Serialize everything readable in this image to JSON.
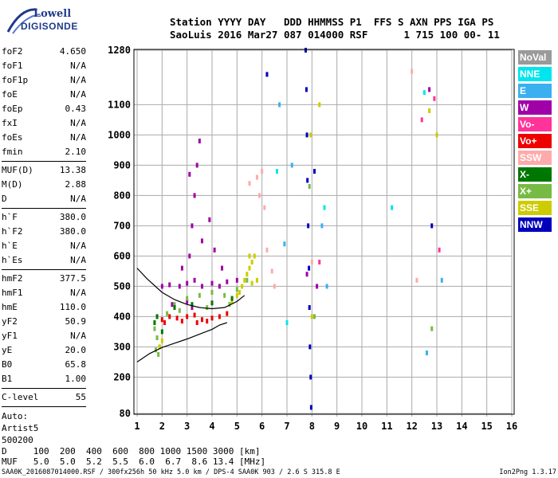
{
  "logo": {
    "line1": "Lowell",
    "line2": "DIGISONDE"
  },
  "header": {
    "line1": "Station YYYY DAY   DDD HHMMSS P1  FFS S AXN PPS IGA PS",
    "line2": "SaoLuis 2016 Mar27 087 014000 RSF      1 715 100 00- 11"
  },
  "params": [
    {
      "name": "foF2",
      "value": "4.650"
    },
    {
      "name": "foF1",
      "value": "N/A"
    },
    {
      "name": "foF1p",
      "value": "N/A"
    },
    {
      "name": "foE",
      "value": "N/A"
    },
    {
      "name": "foEp",
      "value": "0.43"
    },
    {
      "name": "fxI",
      "value": "N/A"
    },
    {
      "name": "foEs",
      "value": "N/A"
    },
    {
      "name": "fmin",
      "value": "2.10"
    },
    {
      "name": "MUF(D)",
      "value": "13.38"
    },
    {
      "name": "M(D)",
      "value": "2.88"
    },
    {
      "name": "D",
      "value": "N/A"
    },
    {
      "name": "h`F",
      "value": "380.0"
    },
    {
      "name": "h`F2",
      "value": "380.0"
    },
    {
      "name": "h`E",
      "value": "N/A"
    },
    {
      "name": "h`Es",
      "value": "N/A"
    },
    {
      "name": "hmF2",
      "value": "377.5"
    },
    {
      "name": "hmF1",
      "value": "N/A"
    },
    {
      "name": "hmE",
      "value": "110.0"
    },
    {
      "name": "yF2",
      "value": "50.9"
    },
    {
      "name": "yF1",
      "value": "N/A"
    },
    {
      "name": "yE",
      "value": "20.0"
    },
    {
      "name": "B0",
      "value": "65.8"
    },
    {
      "name": "B1",
      "value": "1.00"
    },
    {
      "name": "C-level",
      "value": "55"
    }
  ],
  "auto": {
    "line1": "Auto:",
    "line2": "Artist5",
    "line3": "500200"
  },
  "legend": [
    {
      "label": "NoVal",
      "color": "#9a9a9a"
    },
    {
      "label": "NNE",
      "color": "#00e5ee"
    },
    {
      "label": "E",
      "color": "#3ab0f0"
    },
    {
      "label": "W",
      "color": "#a000a8"
    },
    {
      "label": "Vo-",
      "color": "#ff3399"
    },
    {
      "label": "Vo+",
      "color": "#ee0000"
    },
    {
      "label": "SSW",
      "color": "#ffaaaa"
    },
    {
      "label": "X-",
      "color": "#007700"
    },
    {
      "label": "X+",
      "color": "#77bb44"
    },
    {
      "label": "SSE",
      "color": "#cccc00"
    },
    {
      "label": "NNW",
      "color": "#0000bb"
    }
  ],
  "dmuf": {
    "d_line": "D     100  200  400  600  800 1000 1500 3000 [km]",
    "muf_line": "MUF   5.0  5.0  5.2  5.5  6.0  6.7  8.6 13.4 [MHz]"
  },
  "footer": {
    "left": "SAA0K_2016087014000.RSF / 300fx256h 50 kHz 5.0 km / DPS-4 SAA0K 903 / 2.6 S 315.8 E",
    "right": "Ion2Png 1.3.17"
  },
  "chart_data": {
    "type": "scatter",
    "xlim": [
      1,
      16
    ],
    "ylim": [
      80,
      1280
    ],
    "x_ticks": [
      1,
      2,
      3,
      4,
      5,
      6,
      7,
      8,
      9,
      10,
      11,
      12,
      13,
      14,
      15,
      16
    ],
    "y_ticks": [
      80,
      200,
      300,
      400,
      500,
      600,
      700,
      800,
      900,
      1000,
      1100,
      1280
    ],
    "grid": true,
    "series": [
      {
        "name": "W",
        "color": "#a000a8",
        "points": [
          [
            2.0,
            500
          ],
          [
            2.3,
            505
          ],
          [
            2.7,
            500
          ],
          [
            3.0,
            510
          ],
          [
            3.3,
            520
          ],
          [
            3.6,
            500
          ],
          [
            4.0,
            510
          ],
          [
            4.3,
            500
          ],
          [
            4.6,
            515
          ],
          [
            5.0,
            520
          ],
          [
            3.1,
            600
          ],
          [
            3.2,
            700
          ],
          [
            3.3,
            800
          ],
          [
            3.4,
            900
          ],
          [
            3.5,
            980
          ],
          [
            3.1,
            870
          ],
          [
            3.6,
            650
          ],
          [
            2.8,
            560
          ],
          [
            3.9,
            720
          ],
          [
            4.1,
            620
          ],
          [
            4.4,
            560
          ],
          [
            3.0,
            450
          ],
          [
            3.2,
            430
          ],
          [
            2.4,
            440
          ],
          [
            7.8,
            540
          ],
          [
            8.2,
            500
          ],
          [
            12.7,
            1150
          ]
        ]
      },
      {
        "name": "Vo+",
        "color": "#ee0000",
        "points": [
          [
            2.0,
            390
          ],
          [
            2.3,
            400
          ],
          [
            2.6,
            395
          ],
          [
            3.0,
            400
          ],
          [
            3.3,
            405
          ],
          [
            3.6,
            390
          ],
          [
            4.0,
            395
          ],
          [
            4.3,
            400
          ],
          [
            4.6,
            410
          ],
          [
            2.1,
            380
          ],
          [
            2.8,
            385
          ],
          [
            3.4,
            380
          ],
          [
            3.8,
            385
          ]
        ]
      },
      {
        "name": "X+",
        "color": "#77bb44",
        "points": [
          [
            1.7,
            360
          ],
          [
            1.8,
            330
          ],
          [
            1.9,
            300
          ],
          [
            2.5,
            440
          ],
          [
            3.0,
            460
          ],
          [
            3.5,
            470
          ],
          [
            4.0,
            480
          ],
          [
            4.5,
            470
          ],
          [
            5.0,
            490
          ],
          [
            5.4,
            520
          ],
          [
            1.75,
            290
          ],
          [
            1.85,
            275
          ],
          [
            2.2,
            410
          ],
          [
            2.7,
            420
          ],
          [
            3.8,
            430
          ],
          [
            4.7,
            440
          ],
          [
            7.9,
            830
          ],
          [
            8.1,
            400
          ],
          [
            12.8,
            360
          ]
        ]
      },
      {
        "name": "SSE",
        "color": "#cccc00",
        "points": [
          [
            5.0,
            470
          ],
          [
            5.2,
            500
          ],
          [
            5.4,
            540
          ],
          [
            5.5,
            560
          ],
          [
            5.6,
            580
          ],
          [
            5.7,
            600
          ],
          [
            4.8,
            450
          ],
          [
            5.3,
            520
          ],
          [
            5.6,
            510
          ],
          [
            5.8,
            520
          ],
          [
            1.9,
            300
          ],
          [
            2.0,
            320
          ],
          [
            8.0,
            400
          ],
          [
            8.3,
            1100
          ],
          [
            7.95,
            1000
          ],
          [
            12.7,
            1080
          ],
          [
            13.0,
            1000
          ],
          [
            5.1,
            480
          ],
          [
            5.5,
            600
          ]
        ]
      },
      {
        "name": "SSW",
        "color": "#ffaaaa",
        "points": [
          [
            5.5,
            840
          ],
          [
            5.8,
            860
          ],
          [
            6.0,
            880
          ],
          [
            5.9,
            800
          ],
          [
            6.1,
            760
          ],
          [
            6.2,
            620
          ],
          [
            6.4,
            550
          ],
          [
            6.5,
            500
          ],
          [
            8.0,
            580
          ],
          [
            12.0,
            1210
          ],
          [
            12.2,
            520
          ]
        ]
      },
      {
        "name": "X-",
        "color": "#007700",
        "points": [
          [
            1.8,
            400
          ],
          [
            2.5,
            430
          ],
          [
            3.2,
            440
          ],
          [
            4.0,
            445
          ],
          [
            4.8,
            460
          ],
          [
            1.7,
            380
          ],
          [
            2.0,
            350
          ]
        ]
      },
      {
        "name": "NNW",
        "color": "#0000bb",
        "points": [
          [
            7.75,
            1280
          ],
          [
            7.78,
            1150
          ],
          [
            7.8,
            1000
          ],
          [
            7.82,
            850
          ],
          [
            7.85,
            700
          ],
          [
            7.88,
            560
          ],
          [
            7.9,
            430
          ],
          [
            7.92,
            300
          ],
          [
            7.95,
            200
          ],
          [
            7.97,
            100
          ],
          [
            6.2,
            1200
          ],
          [
            8.1,
            880
          ],
          [
            12.8,
            700
          ]
        ]
      },
      {
        "name": "E",
        "color": "#3ab0f0",
        "points": [
          [
            6.7,
            1100
          ],
          [
            6.9,
            640
          ],
          [
            7.2,
            900
          ],
          [
            8.4,
            700
          ],
          [
            8.6,
            500
          ],
          [
            12.6,
            280
          ],
          [
            13.2,
            520
          ]
        ]
      },
      {
        "name": "NNE",
        "color": "#00e5ee",
        "points": [
          [
            6.6,
            880
          ],
          [
            7.0,
            380
          ],
          [
            8.5,
            760
          ],
          [
            11.2,
            760
          ],
          [
            12.5,
            1140
          ]
        ]
      },
      {
        "name": "Vo-",
        "color": "#ff3399",
        "points": [
          [
            8.3,
            580
          ],
          [
            12.9,
            1120
          ],
          [
            13.1,
            620
          ],
          [
            12.4,
            1050
          ]
        ]
      }
    ],
    "curves": [
      {
        "points": [
          [
            1.0,
            250
          ],
          [
            1.5,
            278
          ],
          [
            2.0,
            298
          ],
          [
            2.5,
            312
          ],
          [
            3.0,
            326
          ],
          [
            3.5,
            342
          ],
          [
            4.0,
            358
          ],
          [
            4.3,
            372
          ],
          [
            4.6,
            380
          ]
        ]
      },
      {
        "points": [
          [
            1.0,
            560
          ],
          [
            1.4,
            525
          ],
          [
            2.0,
            480
          ],
          [
            2.5,
            456
          ],
          [
            3.0,
            440
          ],
          [
            3.5,
            430
          ],
          [
            4.0,
            426
          ],
          [
            4.5,
            430
          ],
          [
            5.0,
            450
          ],
          [
            5.3,
            470
          ]
        ]
      }
    ]
  }
}
